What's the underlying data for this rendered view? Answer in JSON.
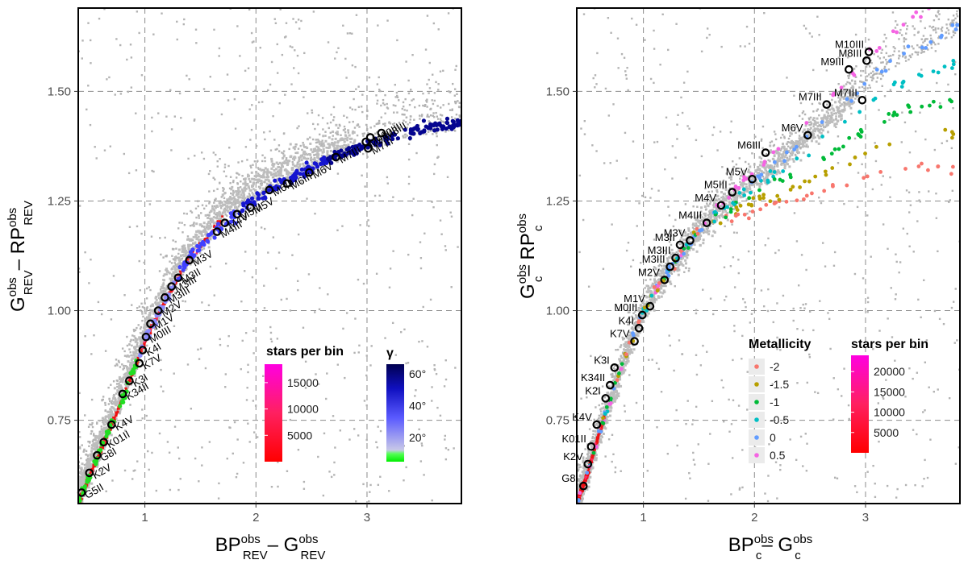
{
  "chart_data": [
    {
      "type": "scatter",
      "panel": "left",
      "xlabel": {
        "main_bp": "BP",
        "sup1": "obs",
        "sub1": "REV",
        "dash": "– G",
        "sup2": "obs",
        "sub2": "REV"
      },
      "ylabel": {
        "main_g": "G",
        "sup1": "obs",
        "sub1": "REV",
        "dash": "– RP",
        "sup2": "obs",
        "sub2": "REV"
      },
      "xlim": [
        0.4,
        3.85
      ],
      "ylim": [
        0.56,
        1.69
      ],
      "xticks": [
        {
          "v": 1,
          "label": "1"
        },
        {
          "v": 2,
          "label": "2"
        },
        {
          "v": 3,
          "label": "3"
        }
      ],
      "yticks": [
        {
          "v": 0.75,
          "label": "0.75"
        },
        {
          "v": 1.0,
          "label": "1.00"
        },
        {
          "v": 1.25,
          "label": "1.25"
        },
        {
          "v": 1.5,
          "label": "1.50"
        }
      ],
      "ridge": [
        [
          0.4,
          0.56
        ],
        [
          0.6,
          0.68
        ],
        [
          0.8,
          0.8
        ],
        [
          1.0,
          0.93
        ],
        [
          1.2,
          1.03
        ],
        [
          1.4,
          1.12
        ],
        [
          1.7,
          1.21
        ],
        [
          2.0,
          1.27
        ],
        [
          2.3,
          1.31
        ],
        [
          2.7,
          1.35
        ],
        [
          3.1,
          1.39
        ],
        [
          3.5,
          1.415
        ],
        [
          3.85,
          1.43
        ]
      ],
      "gamma_track": [
        [
          0.4,
          0.56
        ],
        [
          0.6,
          0.68
        ],
        [
          0.8,
          0.8
        ],
        [
          1.0,
          0.93
        ],
        [
          1.2,
          1.03
        ],
        [
          1.4,
          1.12
        ],
        [
          1.6,
          1.17
        ],
        [
          1.8,
          1.215
        ],
        [
          2.0,
          1.255
        ],
        [
          2.3,
          1.3
        ],
        [
          2.6,
          1.34
        ],
        [
          3.0,
          1.38
        ],
        [
          3.4,
          1.41
        ],
        [
          3.85,
          1.43
        ]
      ],
      "standards": [
        {
          "name": "G5II",
          "x": 0.43,
          "y": 0.585
        },
        {
          "name": "K2V",
          "x": 0.5,
          "y": 0.63
        },
        {
          "name": "G8I",
          "x": 0.57,
          "y": 0.67
        },
        {
          "name": "K01II",
          "x": 0.63,
          "y": 0.7
        },
        {
          "name": "K4V",
          "x": 0.7,
          "y": 0.74
        },
        {
          "name": "K34II",
          "x": 0.8,
          "y": 0.81
        },
        {
          "name": "K3I",
          "x": 0.86,
          "y": 0.84
        },
        {
          "name": "K7V",
          "x": 0.95,
          "y": 0.88
        },
        {
          "name": "K4I",
          "x": 0.98,
          "y": 0.91
        },
        {
          "name": "M0III",
          "x": 1.01,
          "y": 0.94
        },
        {
          "name": "M1V",
          "x": 1.05,
          "y": 0.97
        },
        {
          "name": "M2V",
          "x": 1.12,
          "y": 1.0
        },
        {
          "name": "M3III",
          "x": 1.18,
          "y": 1.03
        },
        {
          "name": "M3III",
          "x": 1.24,
          "y": 1.055
        },
        {
          "name": "M3II",
          "x": 1.3,
          "y": 1.075
        },
        {
          "name": "M3V",
          "x": 1.4,
          "y": 1.115
        },
        {
          "name": "M4III",
          "x": 1.65,
          "y": 1.18
        },
        {
          "name": "M4V",
          "x": 1.72,
          "y": 1.2
        },
        {
          "name": "M5III",
          "x": 1.83,
          "y": 1.22
        },
        {
          "name": "M5V",
          "x": 1.95,
          "y": 1.235
        },
        {
          "name": "M6III",
          "x": 2.12,
          "y": 1.275
        },
        {
          "name": "M6III",
          "x": 2.28,
          "y": 1.29
        },
        {
          "name": "M6V",
          "x": 2.48,
          "y": 1.315
        },
        {
          "name": "M7III",
          "x": 2.72,
          "y": 1.35
        },
        {
          "name": "M7III",
          "x": 3.01,
          "y": 1.37
        },
        {
          "name": "M10III",
          "x": 3.03,
          "y": 1.395
        },
        {
          "name": "M8III",
          "x": 3.13,
          "y": 1.405
        },
        {
          "name": "M9III",
          "x": 2.99,
          "y": 1.385
        }
      ],
      "legend_density": {
        "title": "stars per bin",
        "ticks": [
          5000,
          10000,
          15000
        ],
        "max": 18500
      },
      "legend_gamma": {
        "title": "γ",
        "ticks": [
          {
            "v": 20,
            "label": "20°"
          },
          {
            "v": 40,
            "label": "40°"
          },
          {
            "v": 60,
            "label": "60°"
          }
        ],
        "min": 5,
        "max": 66
      }
    },
    {
      "type": "scatter",
      "panel": "right",
      "xlabel": {
        "main_bp": "BP",
        "sup1": "obs",
        "sub1": "c",
        "dash": "– G",
        "sup2": "obs",
        "sub2": "c"
      },
      "ylabel": {
        "main_g": "G",
        "sup1": "obs",
        "sub1": "c",
        "dash": "– RP",
        "sup2": "obs",
        "sub2": "c"
      },
      "xlim": [
        0.4,
        3.85
      ],
      "ylim": [
        0.56,
        1.69
      ],
      "xticks": [
        {
          "v": 1,
          "label": "1"
        },
        {
          "v": 2,
          "label": "2"
        },
        {
          "v": 3,
          "label": "3"
        }
      ],
      "yticks": [
        {
          "v": 0.75,
          "label": "0.75"
        },
        {
          "v": 1.0,
          "label": "1.00"
        },
        {
          "v": 1.25,
          "label": "1.25"
        },
        {
          "v": 1.5,
          "label": "1.50"
        }
      ],
      "ridge": [
        [
          0.4,
          0.56
        ],
        [
          0.5,
          0.63
        ],
        [
          0.6,
          0.72
        ],
        [
          0.7,
          0.79
        ],
        [
          0.8,
          0.87
        ],
        [
          0.9,
          0.94
        ],
        [
          1.0,
          1.0
        ],
        [
          1.2,
          1.08
        ],
        [
          1.4,
          1.15
        ],
        [
          1.6,
          1.21
        ],
        [
          1.9,
          1.28
        ],
        [
          2.2,
          1.34
        ],
        [
          2.5,
          1.4
        ],
        [
          2.8,
          1.47
        ],
        [
          3.0,
          1.52
        ],
        [
          3.3,
          1.58
        ],
        [
          3.85,
          1.65
        ]
      ],
      "standards": [
        {
          "name": "G8I",
          "x": 0.46,
          "y": 0.6
        },
        {
          "name": "K2V",
          "x": 0.5,
          "y": 0.65
        },
        {
          "name": "K01II",
          "x": 0.53,
          "y": 0.69
        },
        {
          "name": "K4V",
          "x": 0.58,
          "y": 0.74
        },
        {
          "name": "K2I",
          "x": 0.66,
          "y": 0.8
        },
        {
          "name": "K34II",
          "x": 0.7,
          "y": 0.83
        },
        {
          "name": "K3I",
          "x": 0.74,
          "y": 0.87
        },
        {
          "name": "K7V",
          "x": 0.92,
          "y": 0.93
        },
        {
          "name": "K4I",
          "x": 0.96,
          "y": 0.96
        },
        {
          "name": "M0III",
          "x": 0.99,
          "y": 0.99
        },
        {
          "name": "M1V",
          "x": 1.06,
          "y": 1.01
        },
        {
          "name": "M2V",
          "x": 1.19,
          "y": 1.07
        },
        {
          "name": "M3III",
          "x": 1.24,
          "y": 1.1
        },
        {
          "name": "M3III",
          "x": 1.29,
          "y": 1.12
        },
        {
          "name": "M3II",
          "x": 1.33,
          "y": 1.15
        },
        {
          "name": "M3V",
          "x": 1.42,
          "y": 1.16
        },
        {
          "name": "M4III",
          "x": 1.57,
          "y": 1.2
        },
        {
          "name": "M4V",
          "x": 1.7,
          "y": 1.24
        },
        {
          "name": "M5III",
          "x": 1.8,
          "y": 1.27
        },
        {
          "name": "M5V",
          "x": 1.98,
          "y": 1.3
        },
        {
          "name": "M6III",
          "x": 2.1,
          "y": 1.36
        },
        {
          "name": "M6V",
          "x": 2.48,
          "y": 1.4
        },
        {
          "name": "M7III",
          "x": 2.65,
          "y": 1.47
        },
        {
          "name": "M7III",
          "x": 2.97,
          "y": 1.48
        },
        {
          "name": "M9III",
          "x": 2.85,
          "y": 1.55
        },
        {
          "name": "M8III",
          "x": 3.01,
          "y": 1.57
        },
        {
          "name": "M10III",
          "x": 3.03,
          "y": 1.59
        }
      ],
      "legend_metallicity": {
        "title": "Metallicity",
        "items": [
          {
            "label": "-2",
            "color": "#f8766d"
          },
          {
            "label": "-1.5",
            "color": "#b79f00"
          },
          {
            "label": "-1",
            "color": "#00ba38"
          },
          {
            "label": "-0.5",
            "color": "#00bfc4"
          },
          {
            "label": "0",
            "color": "#619cff"
          },
          {
            "label": "0.5",
            "color": "#f564e3"
          }
        ]
      },
      "legend_density": {
        "title": "stars per bin",
        "ticks": [
          5000,
          10000,
          15000,
          20000
        ],
        "max": 24000
      }
    }
  ]
}
